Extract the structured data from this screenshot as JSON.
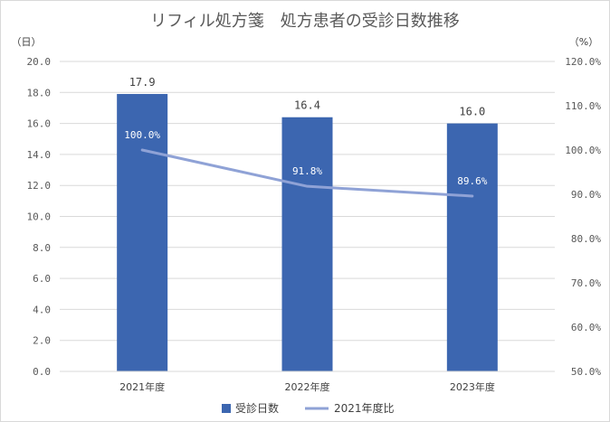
{
  "chart_data": {
    "type": "bar",
    "title": "リフィル処方箋　処方患者の受診日数推移",
    "categories": [
      "2021年度",
      "2022年度",
      "2023年度"
    ],
    "y_unit_label": "（日）",
    "y2_unit_label": "（%）",
    "ylim": [
      0,
      20
    ],
    "y_ticks": [
      "0.0",
      "2.0",
      "4.0",
      "6.0",
      "8.0",
      "10.0",
      "12.0",
      "14.0",
      "16.0",
      "18.0",
      "20.0"
    ],
    "y2lim": [
      50,
      120
    ],
    "y2_ticks": [
      "50.0%",
      "60.0%",
      "70.0%",
      "80.0%",
      "90.0%",
      "100.0%",
      "110.0%",
      "120.0%"
    ],
    "grid": true,
    "legend_position": "bottom",
    "series": [
      {
        "name": "受診日数",
        "type": "bar",
        "axis": "left",
        "values": [
          17.9,
          16.4,
          16.0
        ],
        "labels": [
          "17.9",
          "16.4",
          "16.0"
        ],
        "color": "#3c66b0"
      },
      {
        "name": "2021年度比",
        "type": "line",
        "axis": "right",
        "values": [
          100.0,
          91.8,
          89.6
        ],
        "labels": [
          "100.0%",
          "91.8%",
          "89.6%"
        ],
        "color": "#8fa2d6"
      }
    ]
  }
}
